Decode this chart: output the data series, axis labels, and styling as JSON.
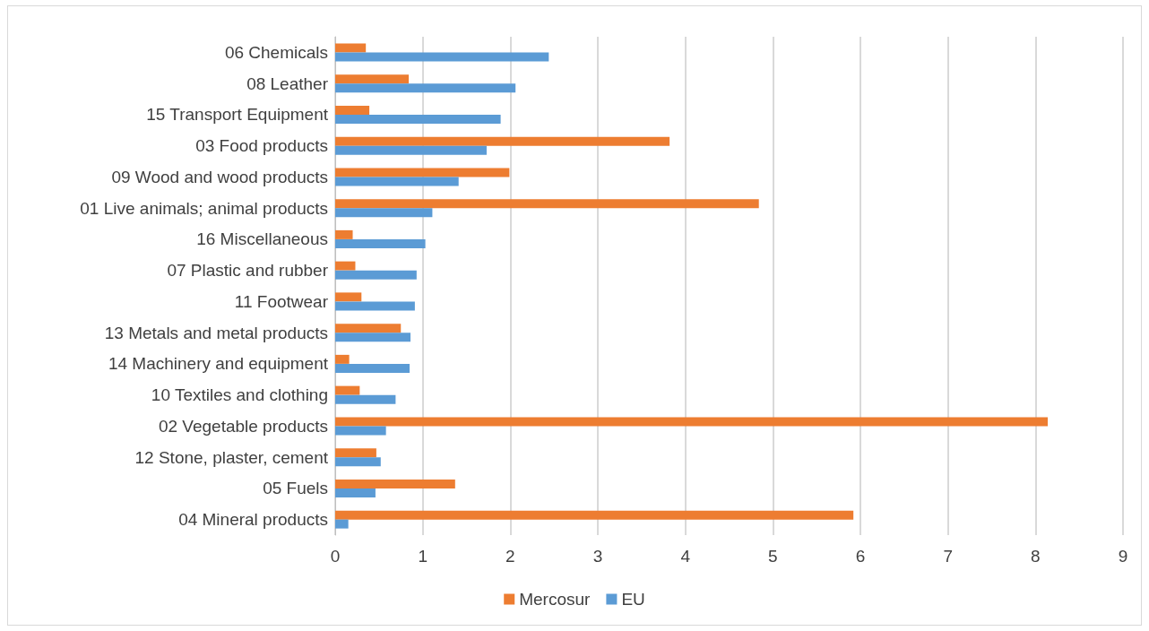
{
  "chart_data": {
    "type": "bar",
    "orientation": "horizontal",
    "categories": [
      "06 Chemicals",
      "08 Leather",
      "15 Transport Equipment",
      "03 Food products",
      "09 Wood and wood products",
      "01 Live animals; animal products",
      "16 Miscellaneous",
      "07 Plastic and rubber",
      "11 Footwear",
      "13 Metals and metal products",
      "14 Machinery and equipment",
      "10 Textiles and clothing",
      "02 Vegetable products",
      "12 Stone, plaster, cement",
      "05 Fuels",
      "04 Mineral products"
    ],
    "series": [
      {
        "name": "Mercosur",
        "color": "#ed7d31",
        "values": [
          0.35,
          0.84,
          0.39,
          3.82,
          1.99,
          4.84,
          0.2,
          0.23,
          0.3,
          0.75,
          0.16,
          0.28,
          8.14,
          0.47,
          1.37,
          5.92
        ]
      },
      {
        "name": "EU",
        "color": "#5b9bd5",
        "values": [
          2.44,
          2.06,
          1.89,
          1.73,
          1.41,
          1.11,
          1.03,
          0.93,
          0.91,
          0.86,
          0.85,
          0.69,
          0.58,
          0.52,
          0.46,
          0.15
        ]
      }
    ],
    "xlim": [
      0,
      9
    ],
    "xticks": [
      0,
      1,
      2,
      3,
      4,
      5,
      6,
      7,
      8,
      9
    ],
    "grid": "x",
    "legend": "bottom"
  }
}
